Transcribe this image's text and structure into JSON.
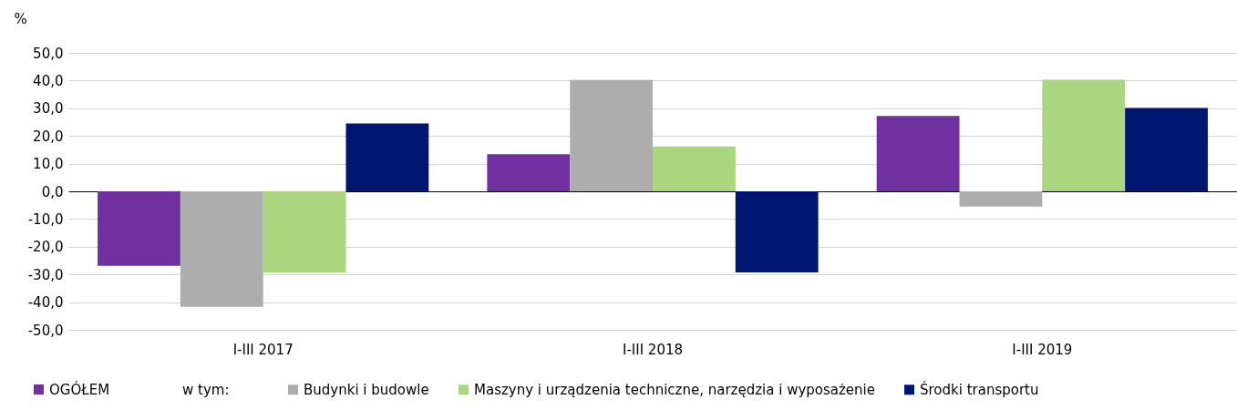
{
  "chart_data": {
    "type": "bar",
    "ylabel": "%",
    "legend_title": "w tym:",
    "categories": [
      "I-III 2017",
      "I-III 2018",
      "I-III 2019"
    ],
    "series": [
      {
        "name": "OGÓŁEM",
        "color": "#7030a0",
        "values": [
          -26.9,
          13.4,
          27.2
        ]
      },
      {
        "name": "Budynki i budowle",
        "color": "#adadad",
        "values": [
          -41.7,
          40.2,
          -5.5
        ]
      },
      {
        "name": "Maszyny i urządzenia techniczne, narzędzia i wyposażenie",
        "color": "#a9d67f",
        "values": [
          -29.3,
          16.2,
          40.3
        ]
      },
      {
        "name": "Środki transportu",
        "color": "#001670",
        "values": [
          24.5,
          -29.3,
          30.1
        ]
      }
    ],
    "ylim": [
      -50,
      50
    ],
    "yticks": [
      {
        "value": -50,
        "label": "-50,0"
      },
      {
        "value": -40,
        "label": "-40,0"
      },
      {
        "value": -30,
        "label": "-30,0"
      },
      {
        "value": -20,
        "label": "-20,0"
      },
      {
        "value": -10,
        "label": "-10,0"
      },
      {
        "value": 0,
        "label": "0,0"
      },
      {
        "value": 10,
        "label": "10,0"
      },
      {
        "value": 20,
        "label": "20,0"
      },
      {
        "value": 30,
        "label": "30,0"
      },
      {
        "value": 40,
        "label": "40,0"
      },
      {
        "value": 50,
        "label": "50,0"
      }
    ],
    "grid": "y",
    "legend": "bottom"
  }
}
